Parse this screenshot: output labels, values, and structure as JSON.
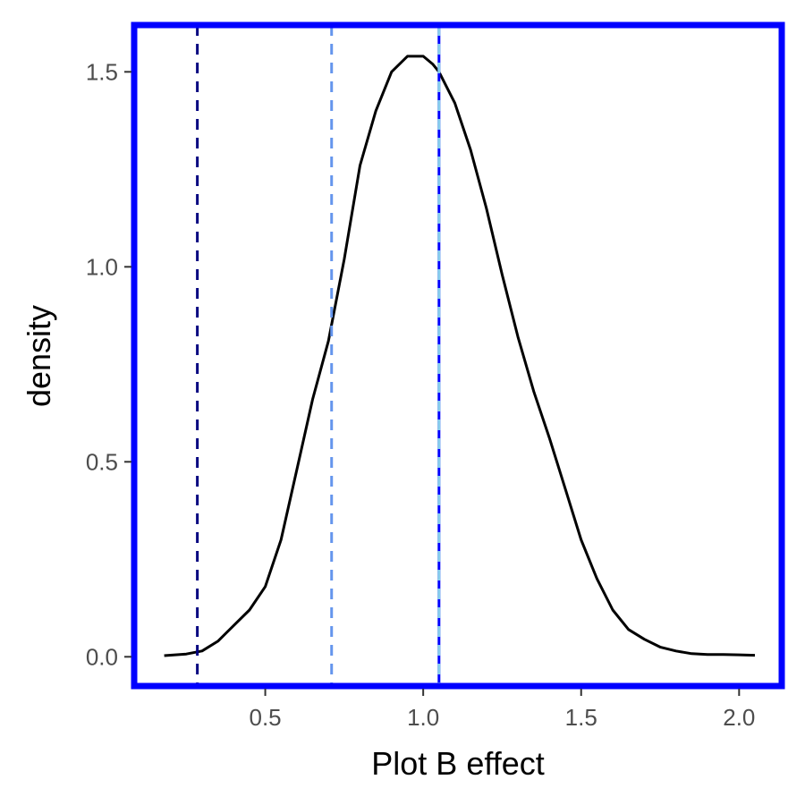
{
  "chart_data": {
    "type": "line",
    "title": "",
    "xlabel": "Plot B effect",
    "ylabel": "density",
    "xlim": [
      0.085,
      2.135
    ],
    "ylim": [
      -0.075,
      1.62
    ],
    "grid": false,
    "x_ticks": [
      0.5,
      1.0,
      1.5,
      2.0
    ],
    "x_tick_labels": [
      "0.5",
      "1.0",
      "1.5",
      "2.0"
    ],
    "y_ticks": [
      0.0,
      0.5,
      1.0,
      1.5
    ],
    "y_tick_labels": [
      "0.0",
      "0.5",
      "1.0",
      "1.5"
    ],
    "series": [
      {
        "color": "#000000",
        "x": [
          0.18,
          0.25,
          0.3,
          0.35,
          0.4,
          0.45,
          0.5,
          0.55,
          0.6,
          0.65,
          0.7,
          0.75,
          0.8,
          0.85,
          0.9,
          0.95,
          1.0,
          1.03,
          1.05,
          1.1,
          1.15,
          1.2,
          1.25,
          1.3,
          1.35,
          1.4,
          1.45,
          1.5,
          1.55,
          1.6,
          1.65,
          1.7,
          1.75,
          1.8,
          1.85,
          1.9,
          1.95,
          2.0,
          2.05
        ],
        "y": [
          0.003,
          0.007,
          0.015,
          0.04,
          0.08,
          0.12,
          0.18,
          0.3,
          0.48,
          0.66,
          0.81,
          1.02,
          1.26,
          1.4,
          1.5,
          1.54,
          1.54,
          1.52,
          1.5,
          1.42,
          1.3,
          1.15,
          0.98,
          0.82,
          0.68,
          0.56,
          0.43,
          0.3,
          0.2,
          0.12,
          0.07,
          0.045,
          0.025,
          0.015,
          0.008,
          0.006,
          0.006,
          0.005,
          0.004
        ]
      }
    ],
    "vlines": [
      {
        "x": 0.285,
        "color": "#00007f",
        "style": "dashed"
      },
      {
        "x": 0.71,
        "color": "#6495ed",
        "style": "dashed"
      },
      {
        "x": 1.05,
        "color": "#0000ff",
        "style": "solid"
      },
      {
        "x": 1.05,
        "color": "#87ceeb",
        "style": "dashed"
      }
    ],
    "frame_color": "#0000ff"
  }
}
